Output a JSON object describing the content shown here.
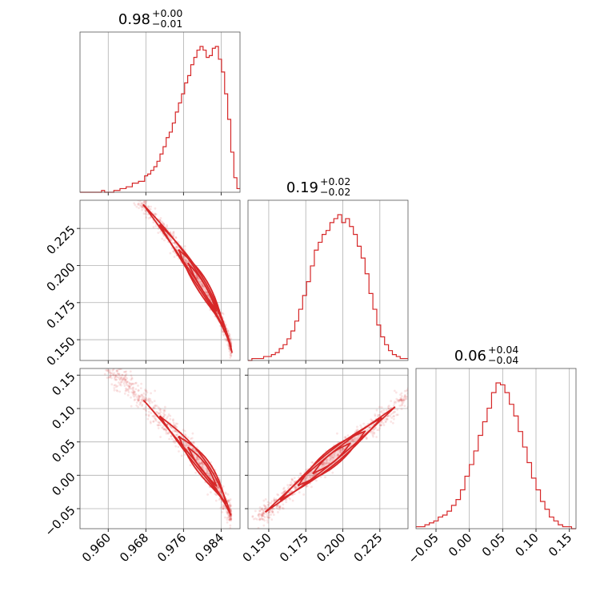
{
  "chart_data": {
    "type": "corner",
    "color": "#d62728",
    "grid": true,
    "params": [
      {
        "title_main": "0.98",
        "title_plus": "+0.00",
        "title_minus": "−0.01",
        "range": [
          0.954,
          0.988
        ],
        "ticks": [
          0.96,
          0.968,
          0.976,
          0.984
        ],
        "ticklabels": [
          "0.960",
          "0.968",
          "0.976",
          "0.984"
        ]
      },
      {
        "title_main": "0.19",
        "title_plus": "+0.02",
        "title_minus": "−0.02",
        "range": [
          0.136,
          0.244
        ],
        "ticks": [
          0.15,
          0.175,
          0.2,
          0.225
        ],
        "ticklabels": [
          "0.150",
          "0.175",
          "0.200",
          "0.225"
        ]
      },
      {
        "title_main": "0.06",
        "title_plus": "+0.04",
        "title_minus": "−0.04",
        "range": [
          -0.08,
          0.16
        ],
        "ticks": [
          -0.05,
          0.0,
          0.05,
          0.1,
          0.15
        ],
        "ticklabels": [
          "−0.05",
          "0.00",
          "0.05",
          "0.10",
          "0.15"
        ]
      }
    ],
    "histograms": [
      {
        "param": 0,
        "values": [
          0,
          0,
          0,
          0,
          0,
          0,
          0,
          1,
          0,
          0,
          0,
          1,
          1,
          2,
          2,
          3,
          3,
          5,
          5,
          6,
          6,
          9,
          10,
          12,
          14,
          17,
          21,
          25,
          30,
          33,
          38,
          44,
          49,
          54,
          60,
          64,
          70,
          74,
          78,
          80,
          78,
          74,
          75,
          79,
          80,
          73,
          66,
          54,
          40,
          22,
          8,
          2
        ]
      },
      {
        "param": 1,
        "values": [
          0,
          1,
          1,
          1,
          2,
          2,
          3,
          4,
          6,
          8,
          11,
          15,
          20,
          26,
          33,
          40,
          48,
          56,
          60,
          64,
          66,
          70,
          72,
          74,
          70,
          72,
          68,
          64,
          58,
          52,
          44,
          34,
          26,
          18,
          12,
          8,
          5,
          3,
          2,
          1,
          1
        ]
      },
      {
        "param": 2,
        "values": [
          1,
          1,
          2,
          3,
          4,
          6,
          7,
          9,
          12,
          15,
          20,
          27,
          33,
          40,
          48,
          55,
          62,
          70,
          75,
          74,
          70,
          64,
          58,
          50,
          42,
          34,
          26,
          20,
          14,
          10,
          6,
          4,
          2,
          1,
          1,
          0
        ]
      }
    ],
    "scatter": [
      {
        "x_param": 0,
        "y_param": 1,
        "description": "tight negative curved correlation"
      },
      {
        "x_param": 0,
        "y_param": 2,
        "description": "tight negative curved correlation"
      },
      {
        "x_param": 1,
        "y_param": 2,
        "description": "tight positive linear correlation"
      }
    ]
  }
}
